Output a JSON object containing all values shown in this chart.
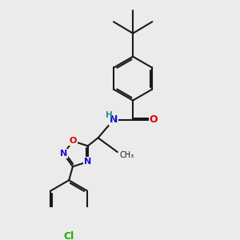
{
  "background_color": "#ebebeb",
  "bond_color": "#1a1a1a",
  "bond_width": 1.5,
  "atom_colors": {
    "N": "#1414cc",
    "O": "#dd0000",
    "Cl": "#22aa00",
    "H": "#2e8b8b",
    "C": "#1a1a1a"
  }
}
